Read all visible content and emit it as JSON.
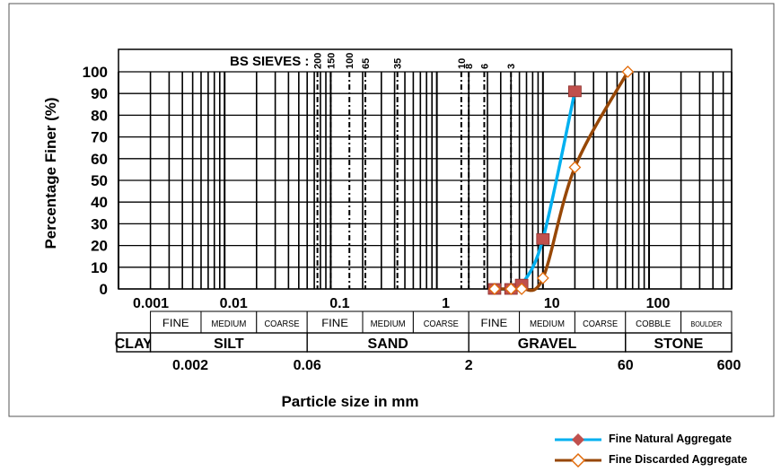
{
  "chart_data": {
    "type": "line",
    "x_scale": "log",
    "xlim": [
      0.001,
      600
    ],
    "ylim": [
      0,
      100
    ],
    "y_ticks": [
      0,
      10,
      20,
      30,
      40,
      50,
      60,
      70,
      80,
      90,
      100
    ],
    "x_top_tick_labels": [
      {
        "value": 0.001,
        "label": "0.001"
      },
      {
        "value": 0.01,
        "label": "0.01"
      },
      {
        "value": 0.1,
        "label": "0.1"
      },
      {
        "value": 1,
        "label": "1"
      },
      {
        "value": 10,
        "label": "10"
      },
      {
        "value": 100,
        "label": "100"
      }
    ],
    "x_bottom_tick_labels": [
      {
        "value": 0.002,
        "label": "0.002"
      },
      {
        "value": 0.06,
        "label": "0.06"
      },
      {
        "value": 2,
        "label": "2"
      },
      {
        "value": 60,
        "label": "60"
      },
      {
        "value": 600,
        "label": "600"
      }
    ],
    "ylabel": "Percentage Finer  (%)",
    "xlabel": "Particle size in mm",
    "bs_sieves": {
      "title": "BS SIEVES :",
      "sieves": [
        {
          "label": "200",
          "size": 0.075
        },
        {
          "label": "150",
          "size": 0.1
        },
        {
          "label": "100",
          "size": 0.15
        },
        {
          "label": "65",
          "size": 0.212
        },
        {
          "label": "35",
          "size": 0.425
        },
        {
          "label": "10",
          "size": 1.7
        },
        {
          "label": "8",
          "size": 2.0
        },
        {
          "label": "6",
          "size": 2.8
        },
        {
          "label": "3",
          "size": 5.0
        }
      ]
    },
    "classification": {
      "sub_row": [
        {
          "label": "FINE",
          "from": 0.002,
          "to": 0.006
        },
        {
          "label": "MEDIUM",
          "from": 0.006,
          "to": 0.02
        },
        {
          "label": "COARSE",
          "from": 0.02,
          "to": 0.06
        },
        {
          "label": "FINE",
          "from": 0.06,
          "to": 0.2
        },
        {
          "label": "MEDIUM",
          "from": 0.2,
          "to": 0.6
        },
        {
          "label": "COARSE",
          "from": 0.6,
          "to": 2
        },
        {
          "label": "FINE",
          "from": 2,
          "to": 6
        },
        {
          "label": "MEDIUM",
          "from": 6,
          "to": 20
        },
        {
          "label": "COARSE",
          "from": 20,
          "to": 60
        },
        {
          "label": "COBBLE",
          "from": 60,
          "to": 200
        },
        {
          "label": "BOULDER",
          "from": 200,
          "to": 600
        }
      ],
      "main_row": [
        {
          "label": "CLAY",
          "from": 0.001,
          "to": 0.002
        },
        {
          "label": "SILT",
          "from": 0.002,
          "to": 0.06
        },
        {
          "label": "SAND",
          "from": 0.06,
          "to": 2
        },
        {
          "label": "GRAVEL",
          "from": 2,
          "to": 60
        },
        {
          "label": "STONE",
          "from": 60,
          "to": 600
        }
      ]
    },
    "series": [
      {
        "name": "Fine Natural Aggregate",
        "color": "#00b0f0",
        "marker": "filled-square",
        "marker_color": "#c0504d",
        "points": [
          [
            3.5,
            0
          ],
          [
            5,
            0
          ],
          [
            6.3,
            2
          ],
          [
            10,
            23
          ],
          [
            20,
            91
          ]
        ]
      },
      {
        "name": "Fine Discarded Aggregate",
        "color": "#974706",
        "marker": "hollow-diamond",
        "marker_color": "#e26b0a",
        "points": [
          [
            3.5,
            0
          ],
          [
            5,
            0
          ],
          [
            6.3,
            0
          ],
          [
            10,
            5
          ],
          [
            20,
            56
          ],
          [
            63,
            100
          ]
        ]
      }
    ]
  }
}
